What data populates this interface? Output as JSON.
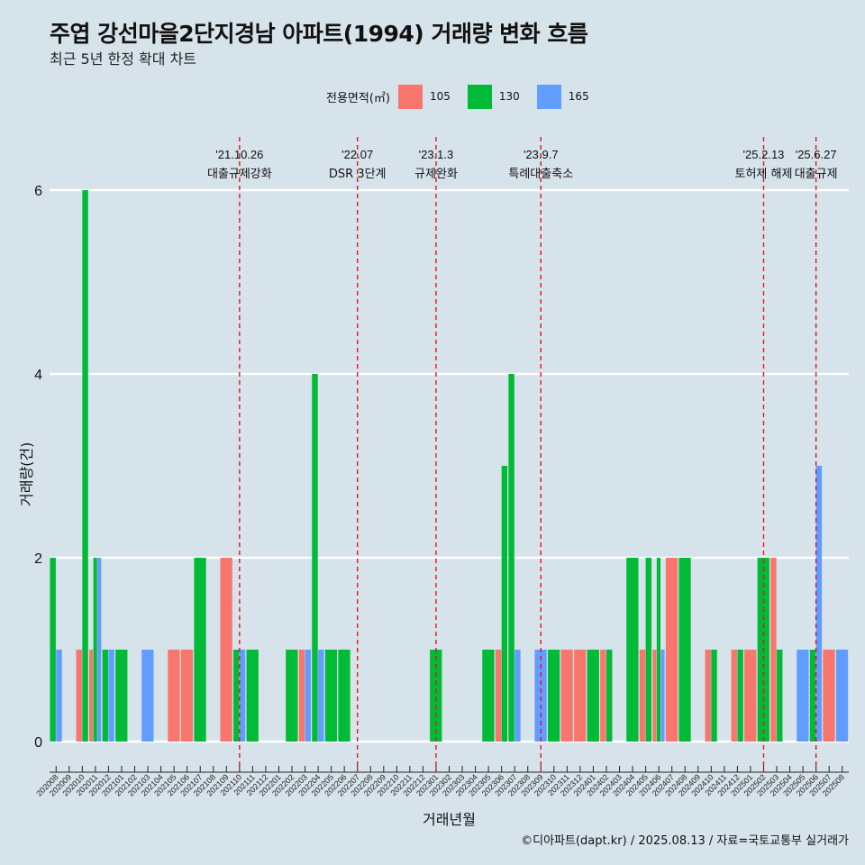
{
  "title": "주엽 강선마을2단지경남 아파트(1994) 거래량 변화 흐름",
  "subtitle": "최근 5년 한정 확대 차트",
  "legend": {
    "title": "전용면적(㎡)",
    "items": [
      {
        "label": "105",
        "color": "#f8766d"
      },
      {
        "label": "130",
        "color": "#00ba38"
      },
      {
        "label": "165",
        "color": "#619cff"
      }
    ]
  },
  "caption": "©디아파트(dapt.kr) / 2025.08.13 / 자료=국토교통부 실거래가",
  "chart_data": {
    "type": "bar",
    "title": "주엽 강선마을2단지경남 아파트(1994) 거래량 변화 흐름",
    "subtitle": "최근 5년 한정 확대 차트",
    "xlabel": "거래년월",
    "ylabel": "거래량(건)",
    "ylim": [
      0,
      6
    ],
    "yticks": [
      0,
      2,
      4,
      6
    ],
    "grid": "horizontal",
    "legend_position": "top",
    "categories": [
      "202008",
      "202009",
      "202010",
      "202011",
      "202012",
      "202101",
      "202102",
      "202103",
      "202104",
      "202105",
      "202106",
      "202107",
      "202108",
      "202109",
      "202110",
      "202111",
      "202112",
      "202201",
      "202202",
      "202203",
      "202204",
      "202205",
      "202206",
      "202207",
      "202208",
      "202209",
      "202210",
      "202211",
      "202212",
      "202301",
      "202302",
      "202303",
      "202304",
      "202305",
      "202306",
      "202307",
      "202308",
      "202309",
      "202310",
      "202311",
      "202312",
      "202401",
      "202402",
      "202403",
      "202404",
      "202405",
      "202406",
      "202407",
      "202408",
      "202409",
      "202410",
      "202411",
      "202412",
      "202501",
      "202502",
      "202503",
      "202504",
      "202505",
      "202506",
      "202507",
      "202508"
    ],
    "series": [
      {
        "name": "105",
        "color": "#f8766d",
        "values": [
          0,
          0,
          1,
          1,
          0,
          0,
          0,
          0,
          0,
          1,
          1,
          0,
          0,
          2,
          0,
          0,
          0,
          0,
          0,
          1,
          0,
          0,
          0,
          0,
          0,
          0,
          0,
          0,
          0,
          0,
          0,
          0,
          0,
          0,
          1,
          0,
          0,
          0,
          0,
          1,
          1,
          0,
          1,
          0,
          0,
          1,
          1,
          2,
          0,
          0,
          1,
          0,
          1,
          1,
          0,
          2,
          0,
          0,
          0,
          1,
          0
        ]
      },
      {
        "name": "130",
        "color": "#00ba38",
        "values": [
          2,
          0,
          6,
          2,
          1,
          1,
          0,
          0,
          0,
          0,
          0,
          2,
          0,
          0,
          1,
          1,
          0,
          0,
          1,
          0,
          4,
          1,
          1,
          0,
          0,
          0,
          0,
          0,
          0,
          1,
          0,
          0,
          0,
          1,
          3,
          4,
          0,
          0,
          1,
          0,
          0,
          1,
          1,
          0,
          2,
          2,
          2,
          0,
          2,
          0,
          1,
          0,
          1,
          0,
          2,
          1,
          0,
          0,
          1,
          0,
          0
        ]
      },
      {
        "name": "165",
        "color": "#619cff",
        "values": [
          1,
          0,
          0,
          2,
          1,
          0,
          0,
          1,
          0,
          0,
          0,
          0,
          0,
          0,
          1,
          0,
          0,
          0,
          0,
          1,
          1,
          0,
          0,
          0,
          0,
          0,
          0,
          0,
          0,
          0,
          0,
          0,
          0,
          0,
          0,
          1,
          0,
          1,
          0,
          0,
          0,
          0,
          0,
          0,
          0,
          0,
          1,
          0,
          0,
          0,
          0,
          0,
          0,
          0,
          0,
          0,
          0,
          1,
          3,
          0,
          1
        ]
      }
    ],
    "annotations": [
      {
        "date": "'21.10.26",
        "label": "대출규제강화",
        "x": "202110"
      },
      {
        "date": "'22.07",
        "label": "DSR 3단계",
        "x": "202207"
      },
      {
        "date": "'23.1.3",
        "label": "규제완화",
        "x": "202301"
      },
      {
        "date": "'23.9.7",
        "label": "특례대출축소",
        "x": "202309"
      },
      {
        "date": "'25.2.13",
        "label": "토허제 해제",
        "x": "202502"
      },
      {
        "date": "'25.6.27",
        "label": "대출규제",
        "x": "202506"
      }
    ]
  }
}
